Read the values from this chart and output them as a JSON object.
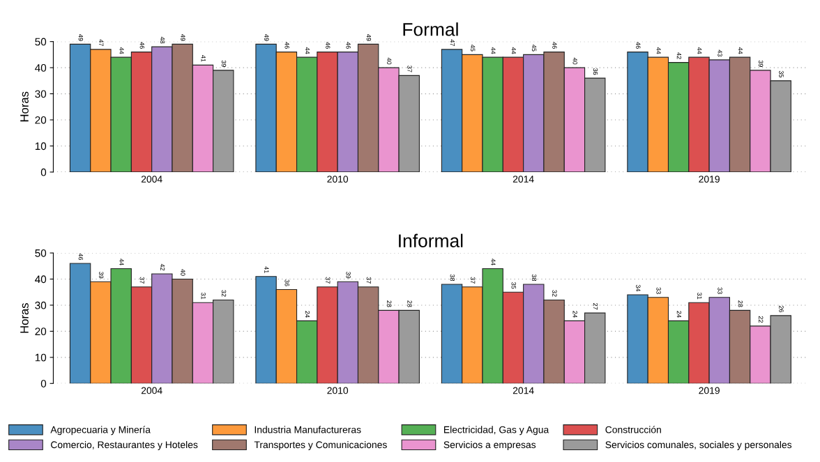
{
  "chart_data": [
    {
      "type": "bar",
      "title": "Formal",
      "ylabel": "Horas",
      "categories": [
        "2004",
        "2010",
        "2014",
        "2019"
      ],
      "ylim": [
        0,
        50
      ],
      "yticks": [
        0,
        10,
        20,
        30,
        40,
        50
      ],
      "grid": "y",
      "data_labels": true,
      "series": [
        {
          "color": "#4a8fc1",
          "values": [
            49,
            49,
            47,
            46
          ]
        },
        {
          "color": "#fd9a3c",
          "values": [
            47,
            46,
            45,
            44
          ]
        },
        {
          "color": "#55b055",
          "values": [
            44,
            44,
            44,
            42
          ]
        },
        {
          "color": "#dc5050",
          "values": [
            46,
            46,
            44,
            44
          ]
        },
        {
          "color": "#a986c8",
          "values": [
            48,
            46,
            45,
            43
          ]
        },
        {
          "color": "#a0786e",
          "values": [
            49,
            49,
            46,
            44
          ]
        },
        {
          "color": "#ea94cf",
          "values": [
            41,
            40,
            40,
            39
          ]
        },
        {
          "color": "#9b9b9b",
          "values": [
            39,
            37,
            36,
            35
          ]
        }
      ]
    },
    {
      "type": "bar",
      "title": "Informal",
      "ylabel": "Horas",
      "categories": [
        "2004",
        "2010",
        "2014",
        "2019"
      ],
      "ylim": [
        0,
        50
      ],
      "yticks": [
        0,
        10,
        20,
        30,
        40,
        50
      ],
      "grid": "y",
      "data_labels": true,
      "legend": "bottom",
      "series": [
        {
          "name": "Agropecuaria y Minería",
          "color": "#4a8fc1",
          "values": [
            46,
            41,
            38,
            34
          ]
        },
        {
          "name": "Industria Manufactureras",
          "color": "#fd9a3c",
          "values": [
            39,
            36,
            37,
            33
          ]
        },
        {
          "name": "Electricidad, Gas y Agua",
          "color": "#55b055",
          "values": [
            44,
            24,
            44,
            24
          ]
        },
        {
          "name": "Construcción",
          "color": "#dc5050",
          "values": [
            37,
            37,
            35,
            31
          ]
        },
        {
          "name": "Comercio, Restaurantes y Hoteles",
          "color": "#a986c8",
          "values": [
            42,
            39,
            38,
            33
          ]
        },
        {
          "name": "Transportes y Comunicaciones",
          "color": "#a0786e",
          "values": [
            40,
            37,
            32,
            28
          ]
        },
        {
          "name": "Servicios a empresas",
          "color": "#ea94cf",
          "values": [
            31,
            28,
            24,
            22
          ]
        },
        {
          "name": "Servicios comunales, sociales y personales",
          "color": "#9b9b9b",
          "values": [
            32,
            28,
            27,
            26
          ]
        }
      ]
    }
  ]
}
